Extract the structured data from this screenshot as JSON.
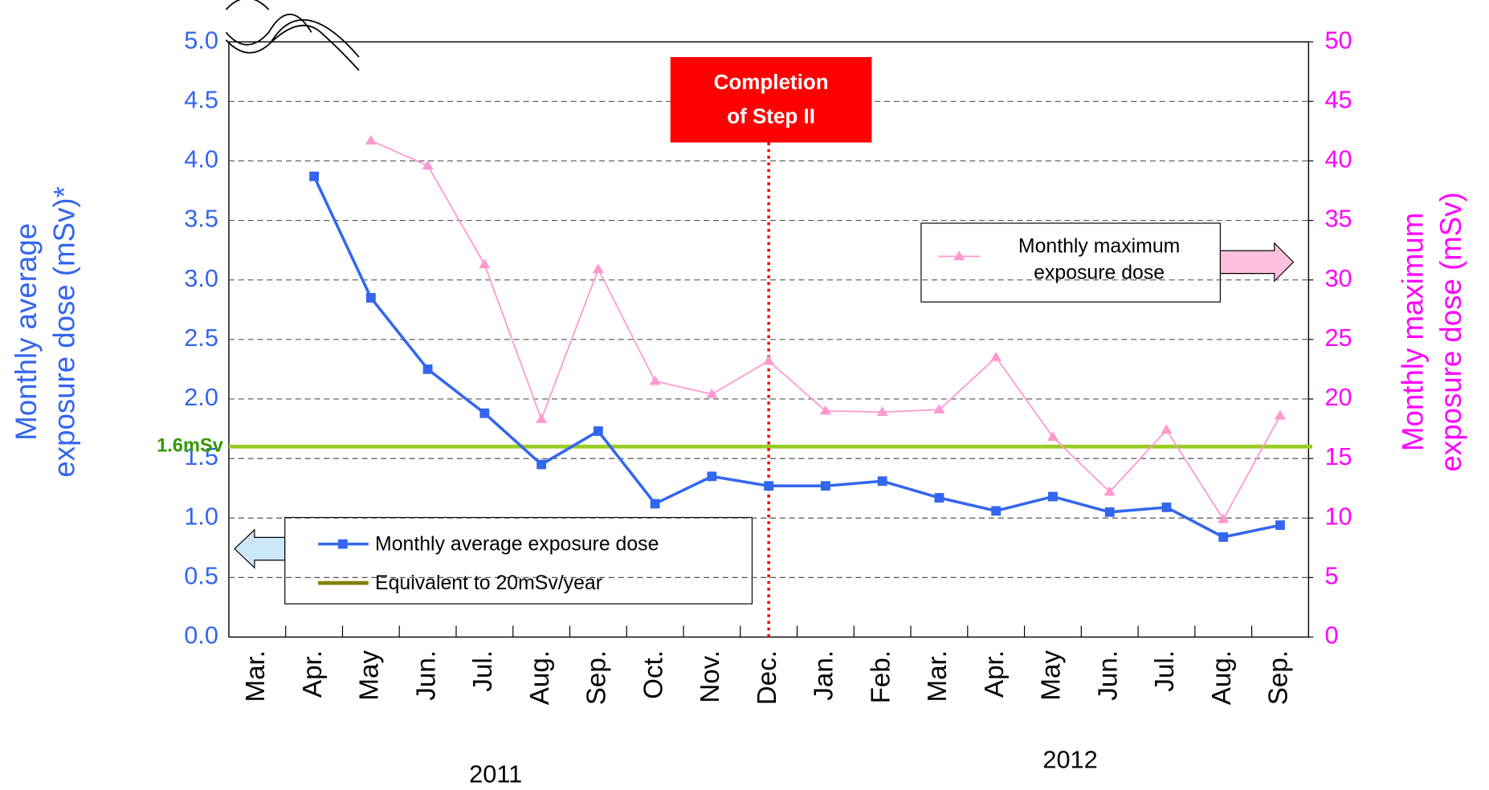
{
  "chart_data": {
    "type": "line",
    "categories": [
      "Mar.",
      "Apr.",
      "May",
      "Jun.",
      "Jul.",
      "Aug.",
      "Sep.",
      "Oct.",
      "Nov.",
      "Dec.",
      "Jan.",
      "Feb.",
      "Mar.",
      "Apr.",
      "May",
      "Jun.",
      "Jul.",
      "Aug.",
      "Sep."
    ],
    "year_labels": [
      "2011",
      "2012"
    ],
    "y_label": [
      "Monthly average",
      "exposure dose (mSv)*"
    ],
    "y2_label": [
      "Monthly maximum",
      "exposure dose (mSv)"
    ],
    "ylim": [
      0,
      5
    ],
    "yticks": [
      {
        "value": 0,
        "label": "0.0"
      },
      0.5,
      {
        "value": 1,
        "label": "1.0"
      },
      1.5,
      {
        "value": 2,
        "label": "2.0"
      },
      2.5,
      {
        "value": 3,
        "label": "3.0"
      },
      3.5,
      {
        "value": 4,
        "label": "4.0"
      },
      4.5,
      {
        "value": 5,
        "label": "5.0"
      }
    ],
    "y2lim": [
      0,
      50
    ],
    "y2ticks": [
      0,
      5,
      10,
      15,
      20,
      25,
      30,
      35,
      40,
      45,
      50
    ],
    "grid": true,
    "series": [
      {
        "name": "Monthly average exposure dose",
        "color": "#3366ee",
        "marker": "square",
        "values": [
          null,
          3.87,
          2.85,
          2.25,
          1.88,
          1.45,
          1.73,
          1.12,
          1.35,
          1.27,
          1.27,
          1.31,
          1.17,
          1.06,
          1.18,
          1.05,
          1.09,
          0.84,
          0.94
        ]
      },
      {
        "name": "Monthly maximum exposure dose",
        "color": "#ff99cc",
        "marker": "triangle",
        "axis": "y2",
        "values": [
          null,
          null,
          41.7,
          39.6,
          31.3,
          18.3,
          30.9,
          21.5,
          20.4,
          23.2,
          19.0,
          18.9,
          19.1,
          23.5,
          16.8,
          12.2,
          17.4,
          9.9,
          18.6
        ]
      }
    ],
    "reference_line": {
      "value": 1.6,
      "label": "1.6mSv",
      "name": "Equivalent to 20mSv/year",
      "color": "#99cc22",
      "legend_color": "#808000"
    },
    "annotation": {
      "lines": [
        "Completion",
        "of Step II"
      ],
      "category": 9,
      "color": "#ff0000"
    }
  }
}
